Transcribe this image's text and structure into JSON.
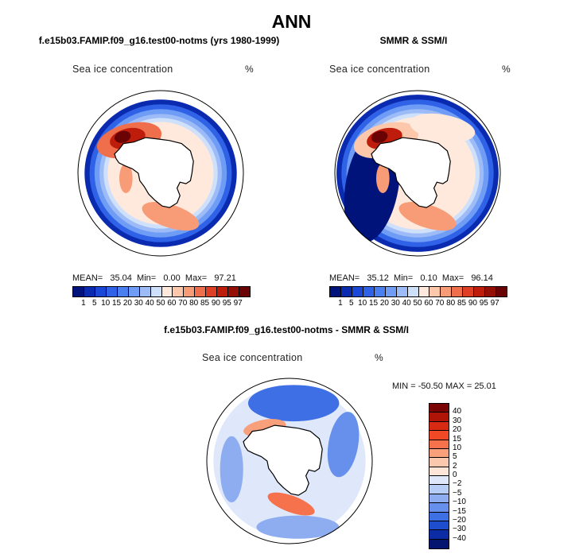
{
  "title": "ANN",
  "panels": [
    {
      "title": "f.e15b03.FAMIP.f09_g16.test00-notms (yrs 1980-1999)",
      "variable": "Sea ice concentration",
      "unit": "%",
      "stats": {
        "mean_label": "MEAN=",
        "mean": "35.04",
        "min_label": "Min=",
        "min": "0.00",
        "max_label": "Max=",
        "max": "97.21"
      }
    },
    {
      "title": "SMMR & SSM/I",
      "variable": "Sea ice concentration",
      "unit": "%",
      "stats": {
        "mean_label": "MEAN=",
        "mean": "35.12",
        "min_label": "Min=",
        "min": "0.10",
        "max_label": "Max=",
        "max": "96.14"
      }
    },
    {
      "title": "f.e15b03.FAMIP.f09_g16.test00-notms - SMMR & SSM/I",
      "variable": "Sea ice concentration",
      "unit": "%",
      "stats_text": "MIN = -50.50 MAX =  25.01"
    }
  ],
  "abs_colorbar": {
    "labels": [
      "1",
      "5",
      "10",
      "15",
      "20",
      "30",
      "40",
      "50",
      "60",
      "70",
      "80",
      "85",
      "90",
      "95",
      "97"
    ],
    "colors": [
      "#00137a",
      "#0a2bb0",
      "#1a47d6",
      "#2f62e6",
      "#4a7ff0",
      "#6f9cf4",
      "#9dbcf7",
      "#cfe0fb",
      "#ffe9dc",
      "#fcc7aa",
      "#f79c76",
      "#ef6e4c",
      "#de3f25",
      "#bf1d0c",
      "#941006",
      "#6a0303"
    ]
  },
  "diff_colorbar": {
    "labels": [
      "40",
      "30",
      "20",
      "15",
      "10",
      "5",
      "2",
      "0",
      "−2",
      "−5",
      "−10",
      "−15",
      "−20",
      "−30",
      "−40"
    ],
    "colors": [
      "#7a0404",
      "#b01408",
      "#d82a12",
      "#ef4a25",
      "#f6724c",
      "#f89f7c",
      "#fbc7ad",
      "#fde6d8",
      "#dfe8fb",
      "#b8cdf6",
      "#8eadf1",
      "#6690ec",
      "#3f6fe4",
      "#1f4dd0",
      "#0b2ca4",
      "#03156e"
    ]
  },
  "colors": {
    "land": "#ffffff",
    "coast": "#000000",
    "frame": "#000000"
  }
}
